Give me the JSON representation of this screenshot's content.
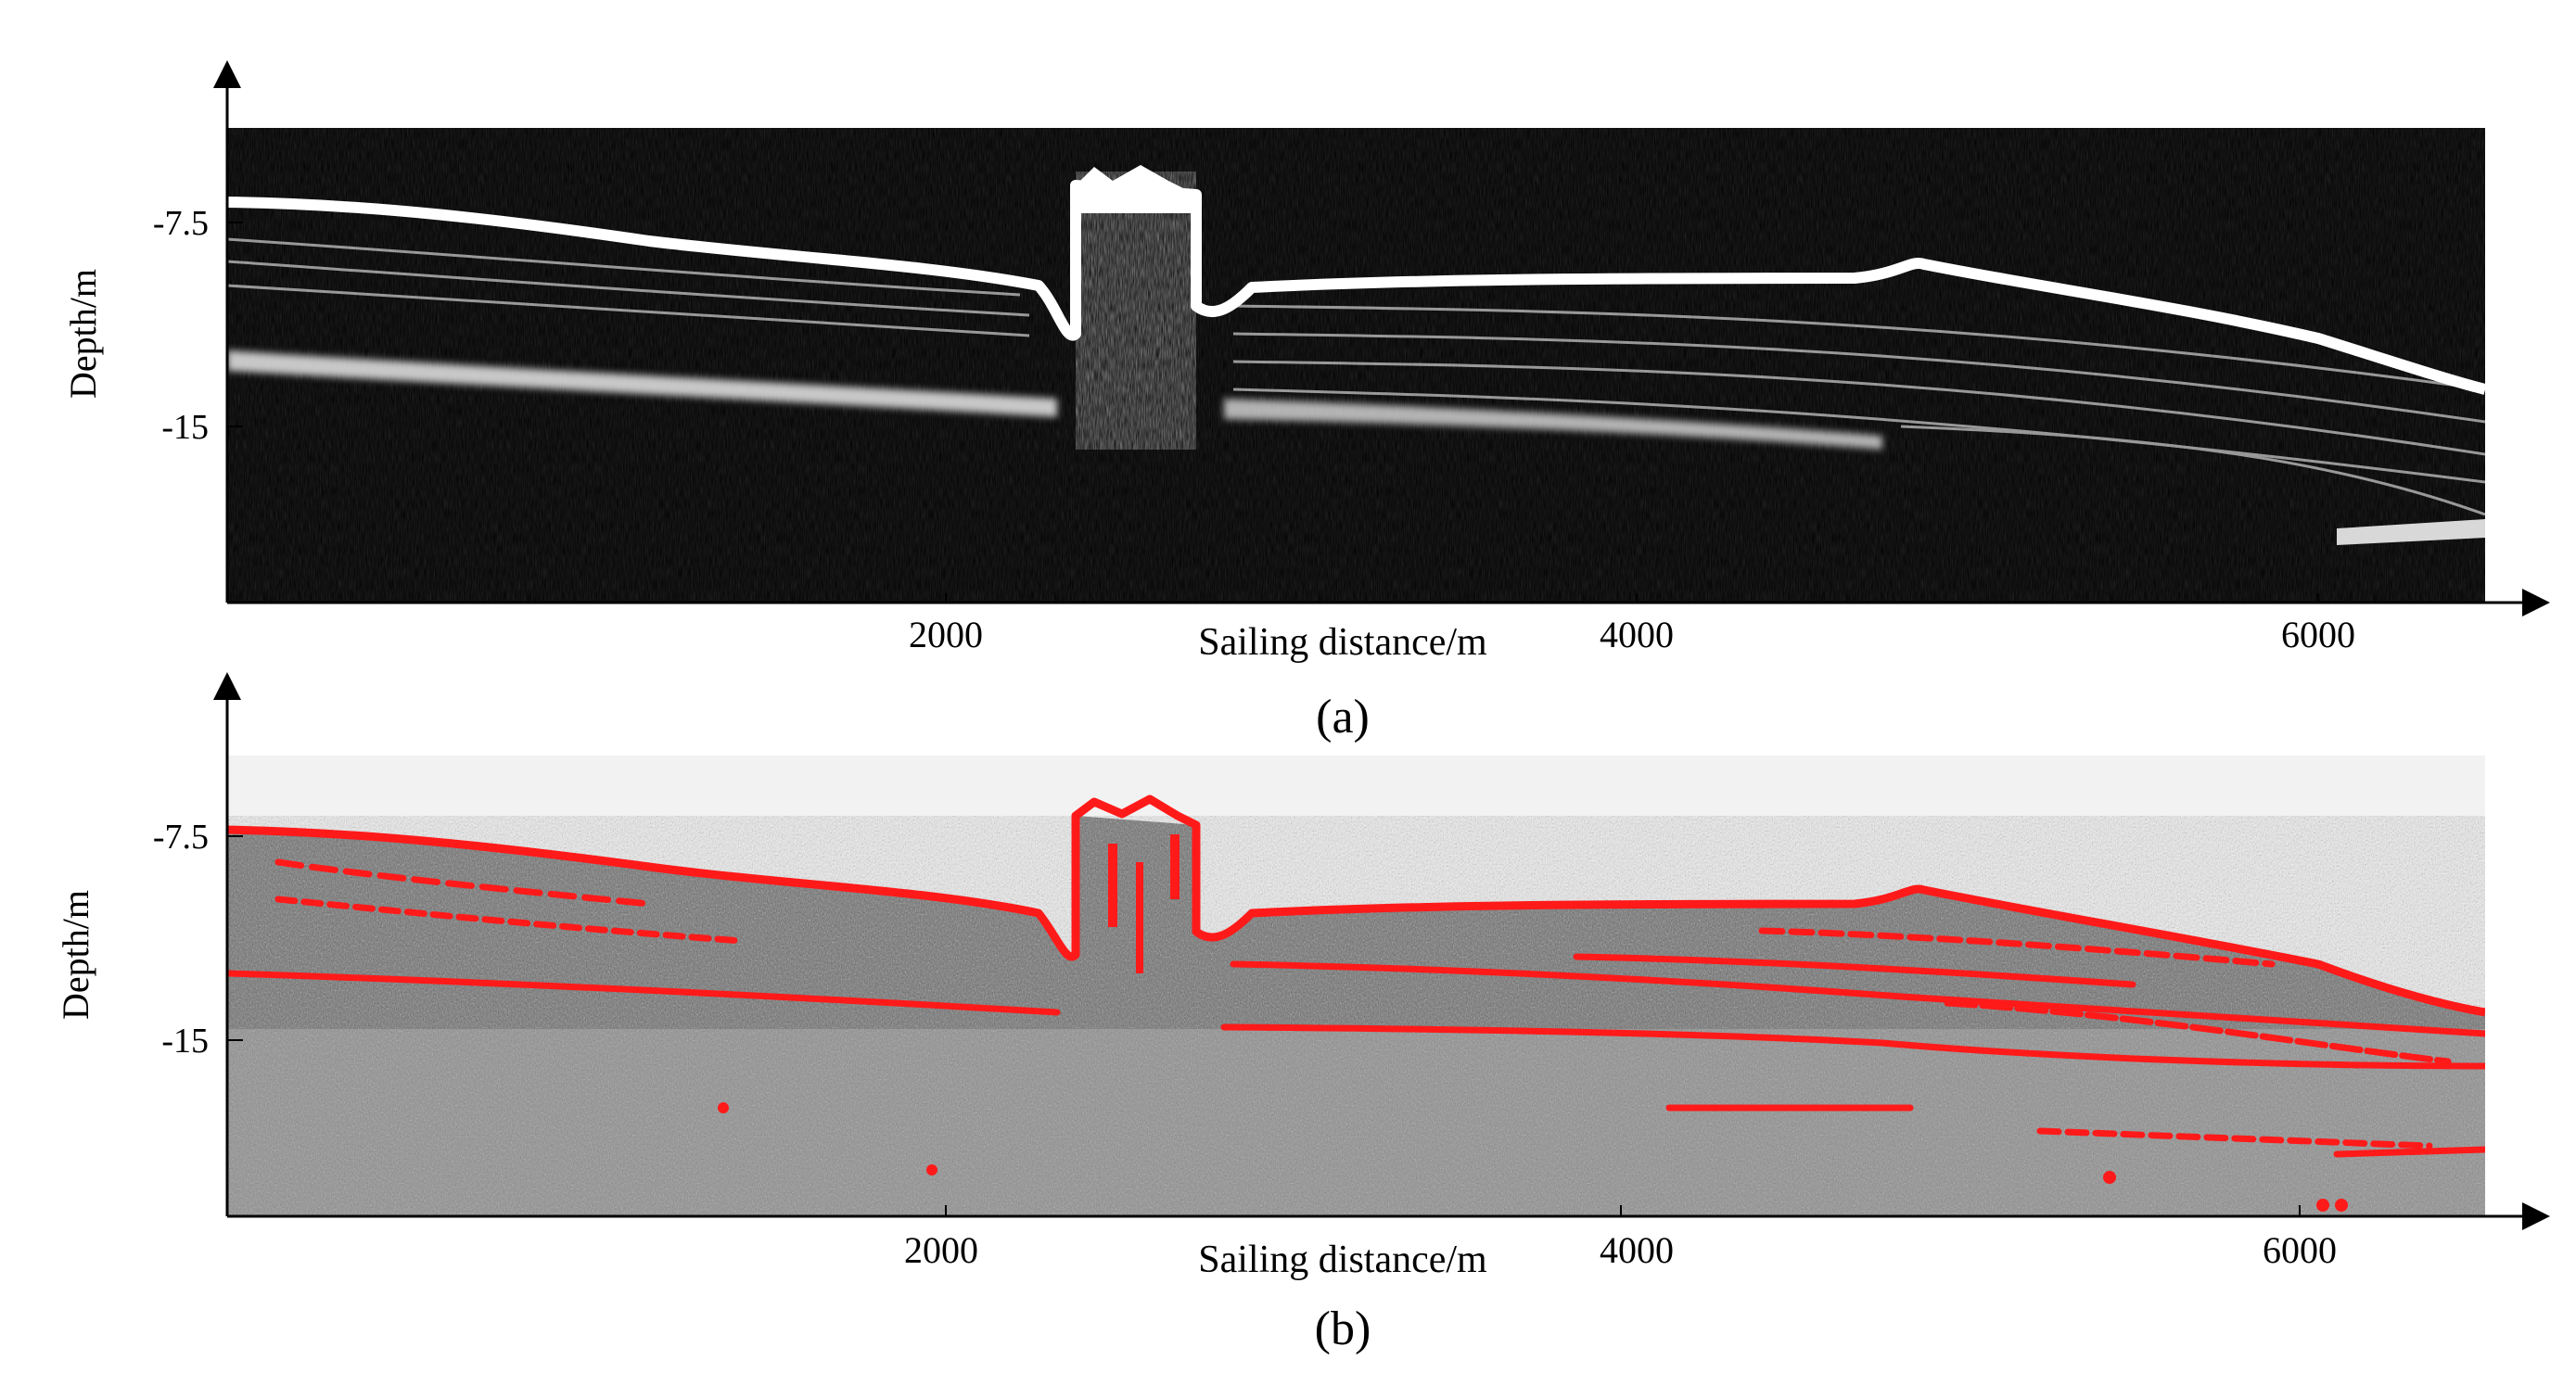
{
  "panels": [
    {
      "id": "a",
      "caption": "(a)",
      "ylabel": "Depth/m",
      "xlabel": "Sailing distance/m",
      "y_ticks": [
        "-7.5",
        "-15"
      ],
      "x_ticks": [
        "2000",
        "4000",
        "6000"
      ],
      "style": "dark"
    },
    {
      "id": "b",
      "caption": "(b)",
      "ylabel": "Depth/m",
      "xlabel": "Sailing distance/m",
      "y_ticks": [
        "-7.5",
        "-15"
      ],
      "x_ticks": [
        "2000",
        "4000",
        "6000"
      ],
      "style": "light"
    }
  ],
  "colors": {
    "echo_background_a": "#000000",
    "echo_background_b": "#f0f0f0",
    "seabed_reflection": "#ffffff",
    "detected_layer": "#ff1a1a",
    "axis": "#000000"
  }
}
